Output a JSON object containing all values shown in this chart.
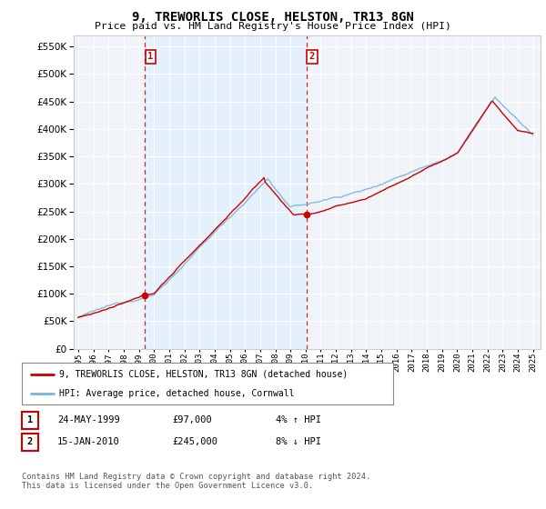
{
  "title": "9, TREWORLIS CLOSE, HELSTON, TR13 8GN",
  "subtitle": "Price paid vs. HM Land Registry's House Price Index (HPI)",
  "yticks": [
    0,
    50000,
    100000,
    150000,
    200000,
    250000,
    300000,
    350000,
    400000,
    450000,
    500000,
    550000
  ],
  "ylim": [
    0,
    570000
  ],
  "sale1_date": 1999.39,
  "sale1_price": 97000,
  "sale2_date": 2010.04,
  "sale2_price": 245000,
  "legend_property": "9, TREWORLIS CLOSE, HELSTON, TR13 8GN (detached house)",
  "legend_hpi": "HPI: Average price, detached house, Cornwall",
  "table_row1": [
    "1",
    "24-MAY-1999",
    "£97,000",
    "4% ↑ HPI"
  ],
  "table_row2": [
    "2",
    "15-JAN-2010",
    "£245,000",
    "8% ↓ HPI"
  ],
  "footnote": "Contains HM Land Registry data © Crown copyright and database right 2024.\nThis data is licensed under the Open Government Licence v3.0.",
  "hpi_color": "#7ab4d8",
  "property_color": "#cc0000",
  "vline_color": "#cc0000",
  "shade_color": "#ddeeff",
  "background_chart": "#f0f4f8",
  "grid_color": "#ffffff"
}
